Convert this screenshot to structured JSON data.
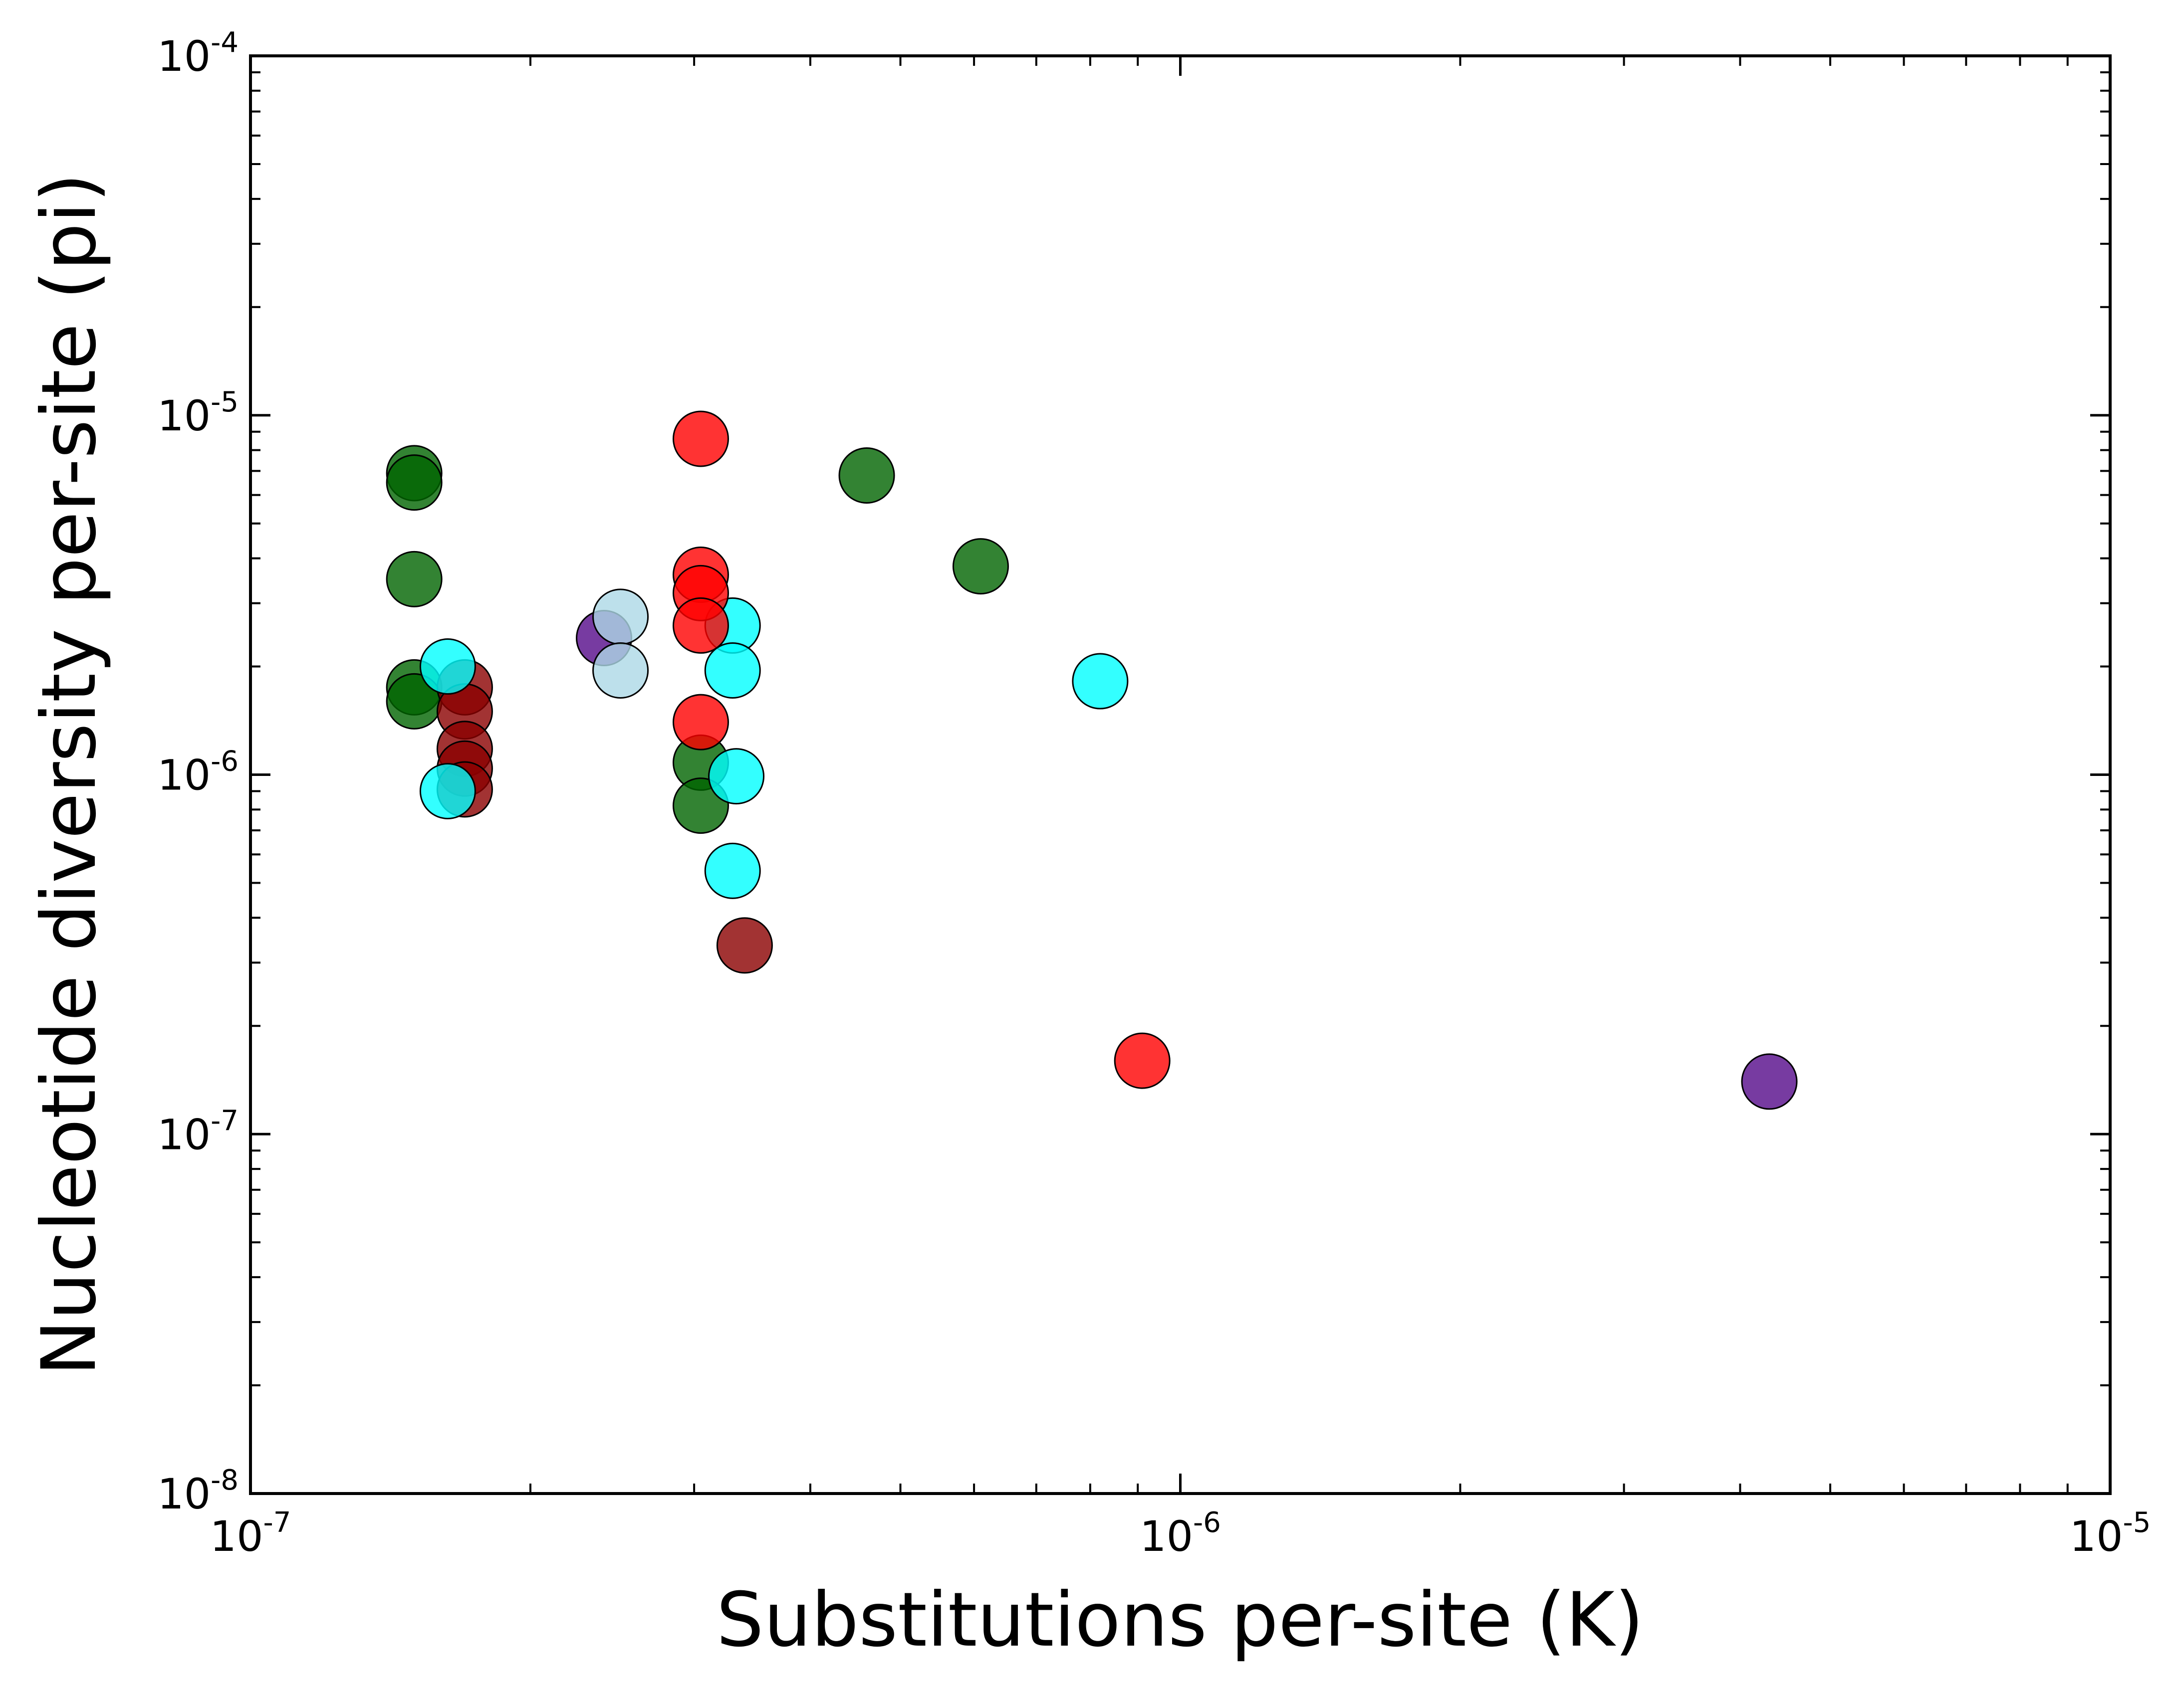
{
  "chart_data": {
    "type": "scatter",
    "title": "",
    "xlabel": "Substitutions per-site (K)",
    "ylabel": "Nucleotide diversity per-site (pi)",
    "xscale": "log",
    "yscale": "log",
    "xlim": [
      1e-07,
      1e-05
    ],
    "ylim": [
      1e-08,
      0.0001
    ],
    "grid": false,
    "legend": "none",
    "x_ticks": [
      {
        "value": 1e-07,
        "base": "10",
        "exp": "-7"
      },
      {
        "value": 1e-06,
        "base": "10",
        "exp": "-6"
      },
      {
        "value": 1e-05,
        "base": "10",
        "exp": "-5"
      }
    ],
    "y_ticks": [
      {
        "value": 1e-08,
        "base": "10",
        "exp": "-8"
      },
      {
        "value": 1e-07,
        "base": "10",
        "exp": "-7"
      },
      {
        "value": 1e-06,
        "base": "10",
        "exp": "-6"
      },
      {
        "value": 1e-05,
        "base": "10",
        "exp": "-5"
      },
      {
        "value": 0.0001,
        "base": "10",
        "exp": "-4"
      }
    ],
    "series": [
      {
        "color": "#006400",
        "points": [
          [
            1.5e-07,
            6.9e-06
          ],
          [
            1.5e-07,
            6.5e-06
          ],
          [
            1.5e-07,
            3.5e-06
          ],
          [
            1.5e-07,
            1.75e-06
          ],
          [
            1.5e-07,
            1.6e-06
          ],
          [
            3.05e-07,
            1.08e-06
          ],
          [
            3.05e-07,
            8.2e-07
          ],
          [
            4.6e-07,
            6.8e-06
          ],
          [
            6.1e-07,
            3.8e-06
          ]
        ]
      },
      {
        "color": "#8b0000",
        "points": [
          [
            1.7e-07,
            1.75e-06
          ],
          [
            1.7e-07,
            1.5e-06
          ],
          [
            1.7e-07,
            1.18e-06
          ],
          [
            1.7e-07,
            1.04e-06
          ],
          [
            1.7e-07,
            9.1e-07
          ],
          [
            3.4e-07,
            3.35e-07
          ]
        ]
      },
      {
        "color": "#00ffff",
        "points": [
          [
            1.63e-07,
            2e-06
          ],
          [
            1.63e-07,
            9e-07
          ],
          [
            3.3e-07,
            2.6e-06
          ],
          [
            3.3e-07,
            1.95e-06
          ],
          [
            3.33e-07,
            9.9e-07
          ],
          [
            3.3e-07,
            5.4e-07
          ],
          [
            8.2e-07,
            1.82e-06
          ]
        ]
      },
      {
        "color": "#ff0000",
        "points": [
          [
            3.05e-07,
            8.6e-06
          ],
          [
            3.05e-07,
            3.6e-06
          ],
          [
            3.05e-07,
            3.2e-06
          ],
          [
            3.05e-07,
            2.6e-06
          ],
          [
            3.05e-07,
            1.4e-06
          ],
          [
            9.1e-07,
            1.6e-07
          ]
        ]
      },
      {
        "color": "#550a8a",
        "points": [
          [
            2.4e-07,
            2.4e-06
          ],
          [
            4.3e-06,
            1.4e-07
          ]
        ]
      },
      {
        "color": "#add8e6",
        "points": [
          [
            2.5e-07,
            2.75e-06
          ],
          [
            2.5e-07,
            1.95e-06
          ]
        ]
      }
    ]
  }
}
